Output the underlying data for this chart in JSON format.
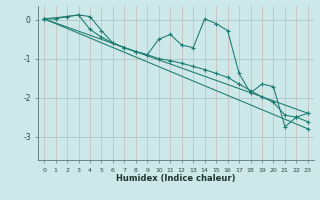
{
  "xlabel": "Humidex (Indice chaleur)",
  "bg_color": "#cce8e8",
  "grid_color_major": "#b8c8c8",
  "grid_color_minor": "#d8c8c8",
  "line_color": "#1a7a6e",
  "xlim": [
    -0.5,
    23.5
  ],
  "ylim": [
    -3.6,
    0.35
  ],
  "yticks": [
    0,
    -1,
    -2,
    -3
  ],
  "xticks": [
    0,
    1,
    2,
    3,
    4,
    5,
    6,
    7,
    8,
    9,
    10,
    11,
    12,
    13,
    14,
    15,
    16,
    17,
    18,
    19,
    20,
    21,
    22,
    23
  ],
  "series": [
    {
      "x": [
        0,
        1,
        2,
        3,
        4,
        5,
        6,
        7,
        8,
        9,
        10,
        11,
        12,
        13,
        14,
        15,
        16,
        17,
        18,
        19,
        20,
        21,
        22,
        23
      ],
      "y": [
        0.02,
        0.02,
        0.08,
        0.12,
        0.08,
        -0.28,
        -0.6,
        -0.72,
        -0.82,
        -0.9,
        -0.5,
        -0.38,
        -0.65,
        -0.72,
        0.02,
        -0.1,
        -0.28,
        -1.38,
        -1.88,
        -1.65,
        -1.72,
        -2.75,
        -2.5,
        -2.4
      ]
    },
    {
      "x": [
        0,
        23
      ],
      "y": [
        0.02,
        -2.4
      ]
    },
    {
      "x": [
        0,
        23
      ],
      "y": [
        0.02,
        -2.8
      ]
    },
    {
      "x": [
        0,
        2,
        3,
        4,
        5,
        6,
        7,
        8,
        9,
        10,
        11,
        12,
        13,
        14,
        15,
        16,
        17,
        18,
        19,
        20,
        21,
        22,
        23
      ],
      "y": [
        0.02,
        0.08,
        0.12,
        -0.25,
        -0.45,
        -0.6,
        -0.72,
        -0.82,
        -0.9,
        -1.0,
        -1.05,
        -1.12,
        -1.2,
        -1.28,
        -1.38,
        -1.48,
        -1.65,
        -1.82,
        -1.98,
        -2.12,
        -2.45,
        -2.5,
        -2.62
      ]
    }
  ]
}
